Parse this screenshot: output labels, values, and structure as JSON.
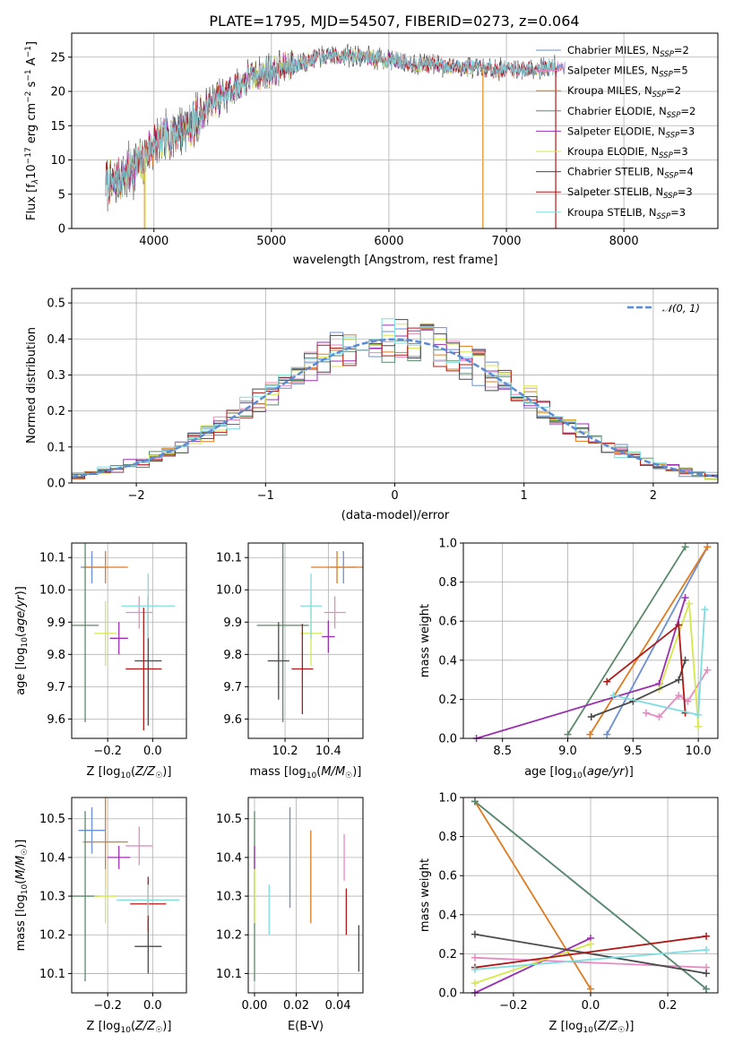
{
  "figure": {
    "title": "PLATE=1795, MJD=54507, FIBERID=0273, z=0.064"
  },
  "models": [
    {
      "name": "Chabrier MILES",
      "nssp": 2,
      "color": "#6b8fd4"
    },
    {
      "name": "Salpeter MILES",
      "nssp": 5,
      "color": "#e78ac3"
    },
    {
      "name": "Kroupa MILES",
      "nssp": 2,
      "color": "#e07b1f"
    },
    {
      "name": "Chabrier ELODIE",
      "nssp": 2,
      "color": "#5b8a6a"
    },
    {
      "name": "Salpeter ELODIE",
      "nssp": 3,
      "color": "#9a30b0"
    },
    {
      "name": "Kroupa ELODIE",
      "nssp": 3,
      "color": "#d6e84a"
    },
    {
      "name": "Chabrier STELIB",
      "nssp": 4,
      "color": "#4a4a4a"
    },
    {
      "name": "Salpeter STELIB",
      "nssp": 3,
      "color": "#b01818"
    },
    {
      "name": "Kroupa STELIB",
      "nssp": 3,
      "color": "#7fdde0"
    }
  ],
  "legend": {
    "spectrum": [
      {
        "label_pre": "Chabrier MILES, N",
        "sub": "SSP",
        "label_post": "=2"
      },
      {
        "label_pre": "Salpeter MILES, N",
        "sub": "SSP",
        "label_post": "=5"
      },
      {
        "label_pre": "Kroupa MILES, N",
        "sub": "SSP",
        "label_post": "=2"
      },
      {
        "label_pre": "Chabrier ELODIE, N",
        "sub": "SSP",
        "label_post": "=2"
      },
      {
        "label_pre": "Salpeter ELODIE, N",
        "sub": "SSP",
        "label_post": "=3"
      },
      {
        "label_pre": "Kroupa ELODIE, N",
        "sub": "SSP",
        "label_post": "=3"
      },
      {
        "label_pre": "Chabrier STELIB, N",
        "sub": "SSP",
        "label_post": "=4"
      },
      {
        "label_pre": "Salpeter STELIB, N",
        "sub": "SSP",
        "label_post": "=3"
      },
      {
        "label_pre": "Kroupa STELIB, N",
        "sub": "SSP",
        "label_post": "=3"
      }
    ],
    "residual": "𝒩(0, 1)"
  },
  "chart_data": [
    {
      "id": "spectrum",
      "type": "line",
      "xlabel": "wavelength [Angstrom, rest frame]",
      "ylabel": "Flux [f_λ 10^-17 erg cm^-2 s^-1 A^-1]",
      "xlim": [
        3300,
        8800
      ],
      "ylim": [
        0,
        28.5
      ],
      "xticks": [
        4000,
        5000,
        6000,
        7000,
        8000
      ],
      "yticks": [
        0,
        5,
        10,
        15,
        20,
        25
      ],
      "continuum": {
        "x": [
          3590,
          3650,
          3700,
          3750,
          3800,
          3850,
          3900,
          3950,
          4000,
          4100,
          4200,
          4300,
          4400,
          4500,
          4600,
          4700,
          4800,
          4900,
          5000,
          5200,
          5400,
          5600,
          5800,
          6000,
          6200,
          6400,
          6600,
          6800,
          7000,
          7200,
          7400,
          7500
        ],
        "y": [
          7.0,
          6.6,
          7.0,
          8.0,
          8.6,
          9.2,
          9.5,
          11.5,
          12.4,
          13.0,
          14.0,
          15.0,
          16.5,
          18.5,
          19.5,
          20.5,
          22.0,
          22.5,
          23.0,
          24.0,
          25.0,
          25.2,
          25.0,
          24.6,
          24.2,
          24.0,
          23.5,
          23.3,
          23.2,
          23.3,
          23.5,
          23.3
        ]
      },
      "drops": [
        {
          "model": "Kroupa MILES",
          "x": 3920,
          "to": 0
        },
        {
          "model": "Kroupa ELODIE",
          "x": 3925,
          "to": 0
        },
        {
          "model": "Kroupa MILES",
          "x": 6800,
          "to": 0
        },
        {
          "model": "Kroupa ELODIE",
          "x": 6805,
          "to": 0
        },
        {
          "model": "Salpeter STELIB",
          "x": 7420,
          "to": 0
        }
      ]
    },
    {
      "id": "residuals",
      "type": "step",
      "xlabel": "(data-model)/error",
      "ylabel": "Normed distribution",
      "xlim": [
        -2.5,
        2.5
      ],
      "ylim": [
        0,
        0.54
      ],
      "xticks": [
        -2,
        -1,
        0,
        1,
        2
      ],
      "yticks": [
        0.0,
        0.1,
        0.2,
        0.3,
        0.4,
        0.5
      ],
      "bin_width": 0.1,
      "reference": "normal(0,1)"
    },
    {
      "id": "age_vs_Z",
      "type": "scatter",
      "xlabel": "Z [log10(Z/Z☉)]",
      "ylabel": "age [log10(age/yr)]",
      "xlim": [
        -0.36,
        0.15
      ],
      "ylim": [
        9.54,
        10.145
      ],
      "xticks": [
        -0.2,
        0.0
      ],
      "yticks": [
        9.6,
        9.7,
        9.8,
        9.9,
        10.0,
        10.1
      ],
      "points": [
        {
          "model": "Chabrier MILES",
          "x": -0.27,
          "y": 10.07,
          "xerr": 0.05,
          "yerr": 0.05
        },
        {
          "model": "Salpeter MILES",
          "x": -0.06,
          "y": 9.93,
          "xerr": 0.06,
          "yerr": 0.05
        },
        {
          "model": "Kroupa MILES",
          "x": -0.21,
          "y": 10.07,
          "xerr": 0.1,
          "yerr": 0.05
        },
        {
          "model": "Chabrier ELODIE",
          "x": -0.3,
          "y": 9.89,
          "xerr": 0.06,
          "yerr": 0.3
        },
        {
          "model": "Salpeter ELODIE",
          "x": -0.15,
          "y": 9.85,
          "xerr": 0.04,
          "yerr": 0.05
        },
        {
          "model": "Kroupa ELODIE",
          "x": -0.21,
          "y": 9.865,
          "xerr": 0.05,
          "yerr": 0.1
        },
        {
          "model": "Chabrier STELIB",
          "x": -0.02,
          "y": 9.78,
          "xerr": 0.06,
          "yerr": 0.2
        },
        {
          "model": "Salpeter STELIB",
          "x": -0.04,
          "y": 9.755,
          "xerr": 0.08,
          "yerr": 0.19
        },
        {
          "model": "Kroupa STELIB",
          "x": -0.02,
          "y": 9.95,
          "xerr": 0.12,
          "yerr": 0.1
        }
      ]
    },
    {
      "id": "age_vs_mass",
      "type": "scatter",
      "xlabel": "mass [log10(M/M☉)]",
      "ylabel": "",
      "xlim": [
        10.03,
        10.56
      ],
      "ylim": [
        9.54,
        10.145
      ],
      "xticks": [
        10.2,
        10.4
      ],
      "yticks": [
        9.6,
        9.7,
        9.8,
        9.9,
        10.0,
        10.1
      ],
      "points": [
        {
          "model": "Chabrier MILES",
          "x": 10.47,
          "y": 10.07,
          "xerr": 0.06,
          "yerr": 0.05
        },
        {
          "model": "Salpeter MILES",
          "x": 10.43,
          "y": 9.93,
          "xerr": 0.05,
          "yerr": 0.05
        },
        {
          "model": "Kroupa MILES",
          "x": 10.44,
          "y": 10.07,
          "xerr": 0.12,
          "yerr": 0.05
        },
        {
          "model": "Chabrier ELODIE",
          "x": 10.19,
          "y": 9.89,
          "xerr": 0.12,
          "yerr": 0.3
        },
        {
          "model": "Salpeter ELODIE",
          "x": 10.4,
          "y": 9.855,
          "xerr": 0.03,
          "yerr": 0.05
        },
        {
          "model": "Kroupa ELODIE",
          "x": 10.32,
          "y": 9.865,
          "xerr": 0.05,
          "yerr": 0.1
        },
        {
          "model": "Chabrier STELIB",
          "x": 10.17,
          "y": 9.78,
          "xerr": 0.05,
          "yerr": 0.12
        },
        {
          "model": "Salpeter STELIB",
          "x": 10.28,
          "y": 9.755,
          "xerr": 0.05,
          "yerr": 0.14
        },
        {
          "model": "Kroupa STELIB",
          "x": 10.32,
          "y": 9.95,
          "xerr": 0.05,
          "yerr": 0.1
        }
      ]
    },
    {
      "id": "massweight_vs_age",
      "type": "line",
      "xlabel": "age [log10(age/yr)]",
      "ylabel": "mass weight",
      "xlim": [
        8.2,
        10.15
      ],
      "ylim": [
        0,
        1.0
      ],
      "xticks": [
        8.5,
        9.0,
        9.5,
        10.0
      ],
      "yticks": [
        0.0,
        0.2,
        0.4,
        0.6,
        0.8,
        1.0
      ],
      "series": [
        {
          "name": "Chabrier MILES",
          "x": [
            9.3,
            10.07
          ],
          "y": [
            0.02,
            0.98
          ]
        },
        {
          "name": "Salpeter MILES",
          "x": [
            9.6,
            9.7,
            9.85,
            9.92,
            10.07
          ],
          "y": [
            0.13,
            0.11,
            0.22,
            0.19,
            0.35
          ]
        },
        {
          "name": "Kroupa MILES",
          "x": [
            9.17,
            10.07
          ],
          "y": [
            0.02,
            0.98
          ]
        },
        {
          "name": "Chabrier ELODIE",
          "x": [
            9.0,
            9.9
          ],
          "y": [
            0.02,
            0.98
          ]
        },
        {
          "name": "Salpeter ELODIE",
          "x": [
            8.3,
            9.7,
            9.9
          ],
          "y": [
            0.0,
            0.28,
            0.72
          ]
        },
        {
          "name": "Kroupa ELODIE",
          "x": [
            9.7,
            9.93,
            10.0
          ],
          "y": [
            0.25,
            0.69,
            0.06
          ]
        },
        {
          "name": "Chabrier STELIB",
          "x": [
            9.18,
            9.5,
            9.85,
            9.9
          ],
          "y": [
            0.11,
            0.19,
            0.3,
            0.4
          ]
        },
        {
          "name": "Salpeter STELIB",
          "x": [
            9.3,
            9.85,
            9.9
          ],
          "y": [
            0.29,
            0.58,
            0.13
          ]
        },
        {
          "name": "Kroupa STELIB",
          "x": [
            9.35,
            10.0,
            10.05
          ],
          "y": [
            0.22,
            0.12,
            0.66
          ]
        }
      ]
    },
    {
      "id": "mass_vs_Z",
      "type": "scatter",
      "xlabel": "Z [log10(Z/Z☉)]",
      "ylabel": "mass [log10(M/M☉)]",
      "xlim": [
        -0.36,
        0.15
      ],
      "ylim": [
        10.05,
        10.555
      ],
      "xticks": [
        -0.2,
        0.0
      ],
      "yticks": [
        10.1,
        10.2,
        10.3,
        10.4,
        10.5
      ],
      "points": [
        {
          "model": "Chabrier MILES",
          "x": -0.27,
          "y": 10.47,
          "xerr": 0.06,
          "yerr": 0.06
        },
        {
          "model": "Salpeter MILES",
          "x": -0.06,
          "y": 10.43,
          "xerr": 0.06,
          "yerr": 0.05
        },
        {
          "model": "Kroupa MILES",
          "x": -0.21,
          "y": 10.44,
          "xerr": 0.1,
          "yerr": 0.12
        },
        {
          "model": "Chabrier ELODIE",
          "x": -0.3,
          "y": 10.3,
          "xerr": 0.06,
          "yerr": 0.22
        },
        {
          "model": "Salpeter ELODIE",
          "x": -0.15,
          "y": 10.4,
          "xerr": 0.05,
          "yerr": 0.03
        },
        {
          "model": "Kroupa ELODIE",
          "x": -0.21,
          "y": 10.3,
          "xerr": 0.05,
          "yerr": 0.07
        },
        {
          "model": "Chabrier STELIB",
          "x": -0.02,
          "y": 10.17,
          "xerr": 0.06,
          "yerr": 0.07
        },
        {
          "model": "Salpeter STELIB",
          "x": -0.02,
          "y": 10.28,
          "xerr": 0.08,
          "yerr": 0.07
        },
        {
          "model": "Kroupa STELIB",
          "x": -0.02,
          "y": 10.29,
          "xerr": 0.14,
          "yerr": 0.04
        }
      ]
    },
    {
      "id": "mass_vs_EBV",
      "type": "errorbar",
      "xlabel": "E(B-V)",
      "ylabel": "",
      "xlim": [
        -0.003,
        0.052
      ],
      "ylim": [
        10.05,
        10.555
      ],
      "xticks": [
        0.0,
        0.02,
        0.04
      ],
      "yticks": [
        10.1,
        10.2,
        10.3,
        10.4,
        10.5
      ],
      "points": [
        {
          "model": "Chabrier MILES",
          "x": 0.017,
          "y": 10.4,
          "yerr": 0.13
        },
        {
          "model": "Salpeter MILES",
          "x": 0.043,
          "y": 10.4,
          "yerr": 0.06
        },
        {
          "model": "Kroupa MILES",
          "x": 0.027,
          "y": 10.35,
          "yerr": 0.12
        },
        {
          "model": "Chabrier ELODIE",
          "x": 0.0,
          "y": 10.3,
          "yerr": 0.22
        },
        {
          "model": "Salpeter ELODIE",
          "x": 0.0,
          "y": 10.4,
          "yerr": 0.03
        },
        {
          "model": "Kroupa ELODIE",
          "x": 0.0,
          "y": 10.3,
          "yerr": 0.07
        },
        {
          "model": "Chabrier STELIB",
          "x": 0.05,
          "y": 10.165,
          "yerr": 0.06
        },
        {
          "model": "Salpeter STELIB",
          "x": 0.044,
          "y": 10.26,
          "yerr": 0.06
        },
        {
          "model": "Kroupa STELIB",
          "x": 0.007,
          "y": 10.265,
          "yerr": 0.065
        }
      ]
    },
    {
      "id": "massweight_vs_Z",
      "type": "line",
      "xlabel": "Z [log10(Z/Z☉)]",
      "ylabel": "mass weight",
      "xlim": [
        -0.33,
        0.33
      ],
      "ylim": [
        0,
        1.0
      ],
      "xticks": [
        -0.2,
        0.0,
        0.2
      ],
      "yticks": [
        0.0,
        0.2,
        0.4,
        0.6,
        0.8,
        1.0
      ],
      "series": [
        {
          "name": "Chabrier MILES",
          "x": [
            -0.3,
            0.3
          ],
          "y": [
            0.98,
            0.02
          ]
        },
        {
          "name": "Salpeter MILES",
          "x": [
            -0.3,
            0.3
          ],
          "y": [
            0.18,
            0.13
          ]
        },
        {
          "name": "Kroupa MILES",
          "x": [
            -0.3,
            0.0
          ],
          "y": [
            0.98,
            0.02
          ]
        },
        {
          "name": "Chabrier ELODIE",
          "x": [
            -0.3,
            0.3
          ],
          "y": [
            0.98,
            0.02
          ]
        },
        {
          "name": "Salpeter ELODIE",
          "x": [
            -0.3,
            0.0
          ],
          "y": [
            0.0,
            0.28
          ]
        },
        {
          "name": "Kroupa ELODIE",
          "x": [
            -0.3,
            0.0
          ],
          "y": [
            0.05,
            0.25
          ]
        },
        {
          "name": "Chabrier STELIB",
          "x": [
            -0.3,
            0.3
          ],
          "y": [
            0.3,
            0.1
          ]
        },
        {
          "name": "Salpeter STELIB",
          "x": [
            -0.3,
            0.3
          ],
          "y": [
            0.13,
            0.29
          ]
        },
        {
          "name": "Kroupa STELIB",
          "x": [
            -0.3,
            0.3
          ],
          "y": [
            0.12,
            0.22
          ]
        }
      ]
    }
  ]
}
